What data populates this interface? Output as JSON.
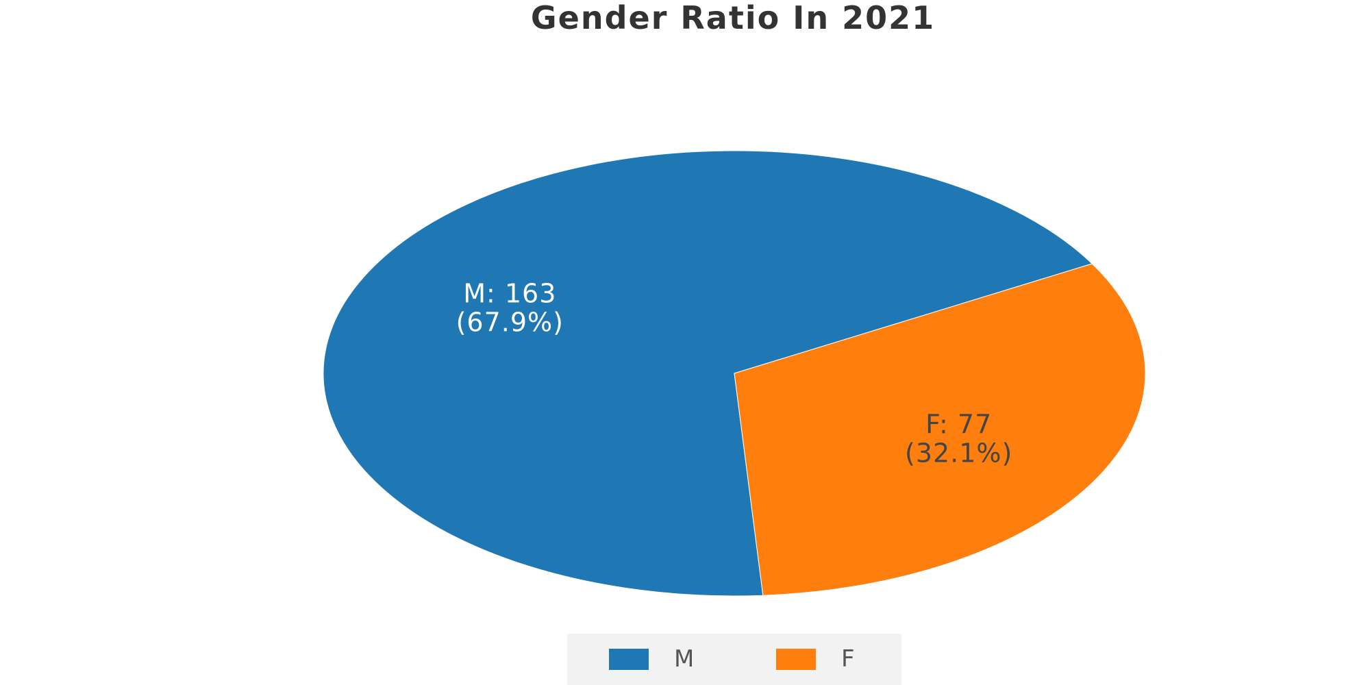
{
  "chart_data": {
    "type": "pie",
    "title": "Gender Ratio In 2021",
    "slices": [
      {
        "name": "M",
        "value": 163,
        "percent": 67.9,
        "label_line1": "M: 163",
        "label_line2": "(67.9%)",
        "color": "#1f77b4",
        "label_color": "#ffffff"
      },
      {
        "name": "F",
        "value": 77,
        "percent": 32.1,
        "label_line1": "F: 77",
        "label_line2": "(32.1%)",
        "color": "#ff7f0e",
        "label_color": "#444444"
      }
    ],
    "legend": {
      "placement": "bottom-center",
      "items": [
        {
          "name": "M",
          "color": "#1f77b4"
        },
        {
          "name": "F",
          "color": "#ff7f0e"
        }
      ]
    }
  }
}
